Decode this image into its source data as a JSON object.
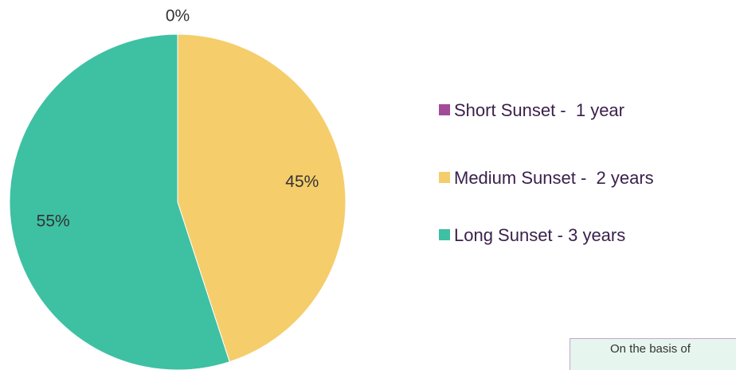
{
  "chart_data": {
    "type": "pie",
    "categories": [
      "Short Sunset -  1 year",
      "Medium Sunset -  2 years",
      "Long Sunset - 3 years"
    ],
    "values": [
      0,
      45,
      55
    ],
    "value_labels": [
      "0%",
      "45%",
      "55%"
    ],
    "colors": [
      "#a24b99",
      "#f5cd6b",
      "#3ec0a3"
    ],
    "annotation": "On the basis of"
  }
}
